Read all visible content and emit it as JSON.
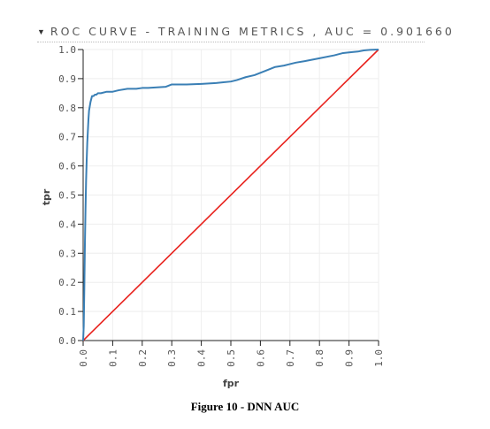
{
  "header": {
    "caret_icon": "caret-down-icon",
    "title": "ROC CURVE - TRAINING METRICS , AUC = 0.901660"
  },
  "caption": "Figure 10 - DNN AUC",
  "chart_data": {
    "type": "line",
    "title": "ROC CURVE - TRAINING METRICS , AUC = 0.901660",
    "xlabel": "fpr",
    "ylabel": "tpr",
    "xlim": [
      0,
      1
    ],
    "ylim": [
      0,
      1
    ],
    "x_ticks": [
      "0.0",
      "0.1",
      "0.2",
      "0.3",
      "0.4",
      "0.5",
      "0.6",
      "0.7",
      "0.8",
      "0.9",
      "1.0"
    ],
    "y_ticks": [
      "0.0",
      "0.1",
      "0.2",
      "0.3",
      "0.4",
      "0.5",
      "0.6",
      "0.7",
      "0.8",
      "0.9",
      "1.0"
    ],
    "grid": true,
    "colors": {
      "roc": "#3a7fb5",
      "diagonal": "#e8221d",
      "axis": "#222222",
      "grid": "#eeeeee"
    },
    "series": [
      {
        "x": [
          0,
          0.002,
          0.004,
          0.006,
          0.008,
          0.01,
          0.012,
          0.014,
          0.016,
          0.018,
          0.02,
          0.025,
          0.03,
          0.035,
          0.04,
          0.045,
          0.05,
          0.06,
          0.08,
          0.1,
          0.12,
          0.15,
          0.18,
          0.2,
          0.22,
          0.25,
          0.28,
          0.3,
          0.32,
          0.35,
          0.4,
          0.45,
          0.5,
          0.52,
          0.55,
          0.58,
          0.6,
          0.62,
          0.65,
          0.68,
          0.7,
          0.72,
          0.75,
          0.8,
          0.85,
          0.88,
          0.9,
          0.93,
          0.95,
          0.97,
          1.0
        ],
        "y": [
          0,
          0.05,
          0.18,
          0.33,
          0.45,
          0.55,
          0.62,
          0.68,
          0.72,
          0.76,
          0.79,
          0.82,
          0.84,
          0.84,
          0.845,
          0.845,
          0.85,
          0.85,
          0.855,
          0.855,
          0.86,
          0.865,
          0.865,
          0.868,
          0.868,
          0.87,
          0.872,
          0.88,
          0.88,
          0.88,
          0.882,
          0.885,
          0.89,
          0.895,
          0.905,
          0.912,
          0.92,
          0.928,
          0.94,
          0.945,
          0.95,
          0.955,
          0.96,
          0.97,
          0.98,
          0.988,
          0.99,
          0.993,
          0.997,
          0.999,
          1.0
        ]
      },
      {
        "x": [
          0,
          1
        ],
        "y": [
          0,
          1
        ]
      }
    ]
  }
}
